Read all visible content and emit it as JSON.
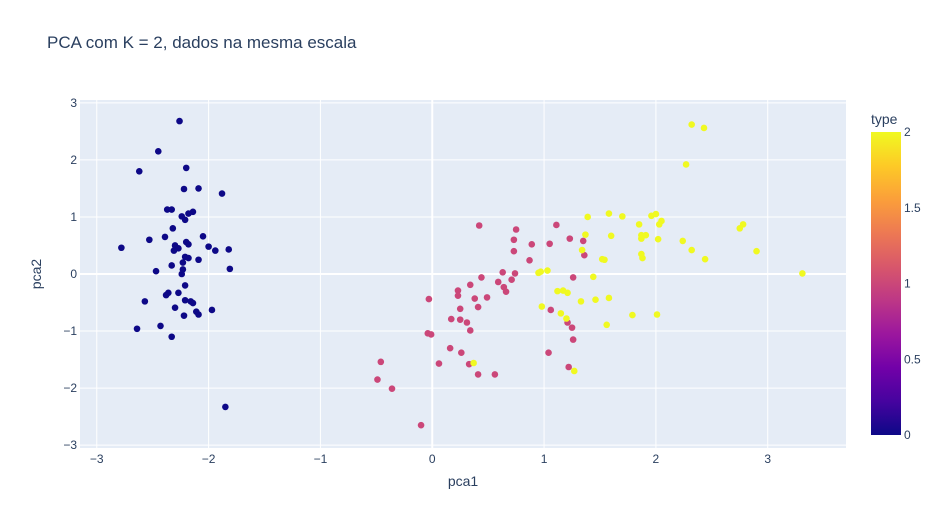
{
  "chart_data": {
    "type": "scatter",
    "title": "PCA com K = 2, dados na mesma escala",
    "xlabel": "pca1",
    "ylabel": "pca2",
    "xlim": [
      -3.15,
      3.7
    ],
    "ylim": [
      -3.05,
      3.05
    ],
    "xticks": [
      -3,
      -2,
      -1,
      0,
      1,
      2,
      3
    ],
    "yticks": [
      -3,
      -2,
      -1,
      0,
      1,
      2,
      3
    ],
    "grid": true,
    "plot_background": "#e5ecf6",
    "colorbar": {
      "title": "type",
      "range": [
        0,
        2
      ],
      "ticks": [
        "0",
        "0.5",
        "1",
        "1.5",
        "2"
      ],
      "colorscale": [
        "#0d0887",
        "#46039f",
        "#7201a8",
        "#9c179e",
        "#bd3786",
        "#d8576b",
        "#ed7953",
        "#fb9f3a",
        "#fdca26",
        "#f0f921"
      ]
    },
    "series": [
      {
        "value": 0,
        "points": [
          [
            -2.26,
            2.68
          ],
          [
            -2.45,
            2.15
          ],
          [
            -2.62,
            1.8
          ],
          [
            -2.2,
            1.86
          ],
          [
            -2.22,
            1.49
          ],
          [
            -2.09,
            1.5
          ],
          [
            -1.88,
            1.41
          ],
          [
            -2.37,
            1.13
          ],
          [
            -2.33,
            1.13
          ],
          [
            -2.14,
            1.09
          ],
          [
            -2.18,
            1.06
          ],
          [
            -2.24,
            1.01
          ],
          [
            -2.21,
            0.95
          ],
          [
            -2.32,
            0.8
          ],
          [
            -2.53,
            0.6
          ],
          [
            -2.39,
            0.65
          ],
          [
            -2.05,
            0.66
          ],
          [
            -2.2,
            0.56
          ],
          [
            -2.18,
            0.52
          ],
          [
            -2.3,
            0.5
          ],
          [
            -2.27,
            0.45
          ],
          [
            -2.31,
            0.41
          ],
          [
            -2.0,
            0.48
          ],
          [
            -1.94,
            0.41
          ],
          [
            -1.82,
            0.43
          ],
          [
            -2.78,
            0.46
          ],
          [
            -2.21,
            0.3
          ],
          [
            -2.18,
            0.28
          ],
          [
            -2.09,
            0.25
          ],
          [
            -2.23,
            0.2
          ],
          [
            -2.33,
            0.15
          ],
          [
            -2.47,
            0.05
          ],
          [
            -2.24,
            0.0
          ],
          [
            -2.23,
            0.08
          ],
          [
            -1.81,
            0.09
          ],
          [
            -2.21,
            -0.2
          ],
          [
            -2.36,
            -0.33
          ],
          [
            -2.38,
            -0.37
          ],
          [
            -2.27,
            -0.33
          ],
          [
            -2.57,
            -0.48
          ],
          [
            -2.21,
            -0.46
          ],
          [
            -2.16,
            -0.48
          ],
          [
            -2.14,
            -0.51
          ],
          [
            -2.3,
            -0.59
          ],
          [
            -1.97,
            -0.63
          ],
          [
            -2.11,
            -0.66
          ],
          [
            -2.09,
            -0.71
          ],
          [
            -2.22,
            -0.73
          ],
          [
            -2.43,
            -0.91
          ],
          [
            -2.64,
            -0.96
          ],
          [
            -2.33,
            -1.1
          ],
          [
            -1.85,
            -2.33
          ]
        ]
      },
      {
        "value": 1,
        "points": [
          [
            0.42,
            0.85
          ],
          [
            1.11,
            0.86
          ],
          [
            0.75,
            0.78
          ],
          [
            1.23,
            0.62
          ],
          [
            0.73,
            0.6
          ],
          [
            1.35,
            0.58
          ],
          [
            0.89,
            0.52
          ],
          [
            1.05,
            0.53
          ],
          [
            0.73,
            0.4
          ],
          [
            1.36,
            0.33
          ],
          [
            0.87,
            0.24
          ],
          [
            0.63,
            0.03
          ],
          [
            0.74,
            0.01
          ],
          [
            1.26,
            -0.06
          ],
          [
            0.44,
            -0.06
          ],
          [
            0.71,
            -0.1
          ],
          [
            0.59,
            -0.14
          ],
          [
            0.34,
            -0.19
          ],
          [
            0.64,
            -0.23
          ],
          [
            0.66,
            -0.31
          ],
          [
            0.23,
            -0.29
          ],
          [
            0.23,
            -0.38
          ],
          [
            0.49,
            -0.41
          ],
          [
            -0.03,
            -0.44
          ],
          [
            0.38,
            -0.43
          ],
          [
            0.41,
            -0.58
          ],
          [
            0.25,
            -0.61
          ],
          [
            1.06,
            -0.63
          ],
          [
            0.17,
            -0.79
          ],
          [
            0.25,
            -0.8
          ],
          [
            0.31,
            -0.85
          ],
          [
            1.21,
            -0.85
          ],
          [
            1.25,
            -0.94
          ],
          [
            0.34,
            -0.99
          ],
          [
            -0.04,
            -1.04
          ],
          [
            -0.01,
            -1.06
          ],
          [
            1.26,
            -1.15
          ],
          [
            0.16,
            -1.3
          ],
          [
            0.26,
            -1.38
          ],
          [
            1.04,
            -1.38
          ],
          [
            -0.46,
            -1.54
          ],
          [
            0.06,
            -1.57
          ],
          [
            0.33,
            -1.58
          ],
          [
            1.22,
            -1.63
          ],
          [
            0.41,
            -1.76
          ],
          [
            0.56,
            -1.76
          ],
          [
            -0.49,
            -1.85
          ],
          [
            -0.36,
            -2.01
          ],
          [
            -0.1,
            -2.65
          ]
        ]
      },
      {
        "value": 2,
        "points": [
          [
            2.32,
            2.62
          ],
          [
            2.43,
            2.56
          ],
          [
            2.27,
            1.92
          ],
          [
            1.58,
            1.06
          ],
          [
            1.7,
            1.01
          ],
          [
            1.39,
            1.0
          ],
          [
            1.96,
            1.02
          ],
          [
            2.0,
            1.05
          ],
          [
            2.05,
            0.93
          ],
          [
            2.03,
            0.87
          ],
          [
            1.85,
            0.87
          ],
          [
            2.78,
            0.87
          ],
          [
            2.75,
            0.8
          ],
          [
            1.6,
            0.67
          ],
          [
            1.87,
            0.68
          ],
          [
            1.91,
            0.68
          ],
          [
            1.37,
            0.69
          ],
          [
            1.87,
            0.62
          ],
          [
            2.02,
            0.61
          ],
          [
            2.24,
            0.58
          ],
          [
            2.32,
            0.42
          ],
          [
            2.9,
            0.4
          ],
          [
            1.87,
            0.35
          ],
          [
            1.88,
            0.28
          ],
          [
            1.34,
            0.42
          ],
          [
            1.52,
            0.26
          ],
          [
            1.54,
            0.25
          ],
          [
            2.44,
            0.26
          ],
          [
            0.95,
            0.02
          ],
          [
            0.97,
            0.04
          ],
          [
            1.03,
            0.06
          ],
          [
            1.44,
            -0.05
          ],
          [
            3.31,
            0.01
          ],
          [
            1.17,
            -0.29
          ],
          [
            1.12,
            -0.3
          ],
          [
            1.21,
            -0.33
          ],
          [
            1.58,
            -0.42
          ],
          [
            1.46,
            -0.45
          ],
          [
            1.33,
            -0.48
          ],
          [
            0.98,
            -0.57
          ],
          [
            1.15,
            -0.69
          ],
          [
            1.79,
            -0.72
          ],
          [
            2.01,
            -0.71
          ],
          [
            1.2,
            -0.78
          ],
          [
            1.56,
            -0.89
          ],
          [
            0.37,
            -1.56
          ],
          [
            1.27,
            -1.7
          ]
        ]
      }
    ]
  }
}
